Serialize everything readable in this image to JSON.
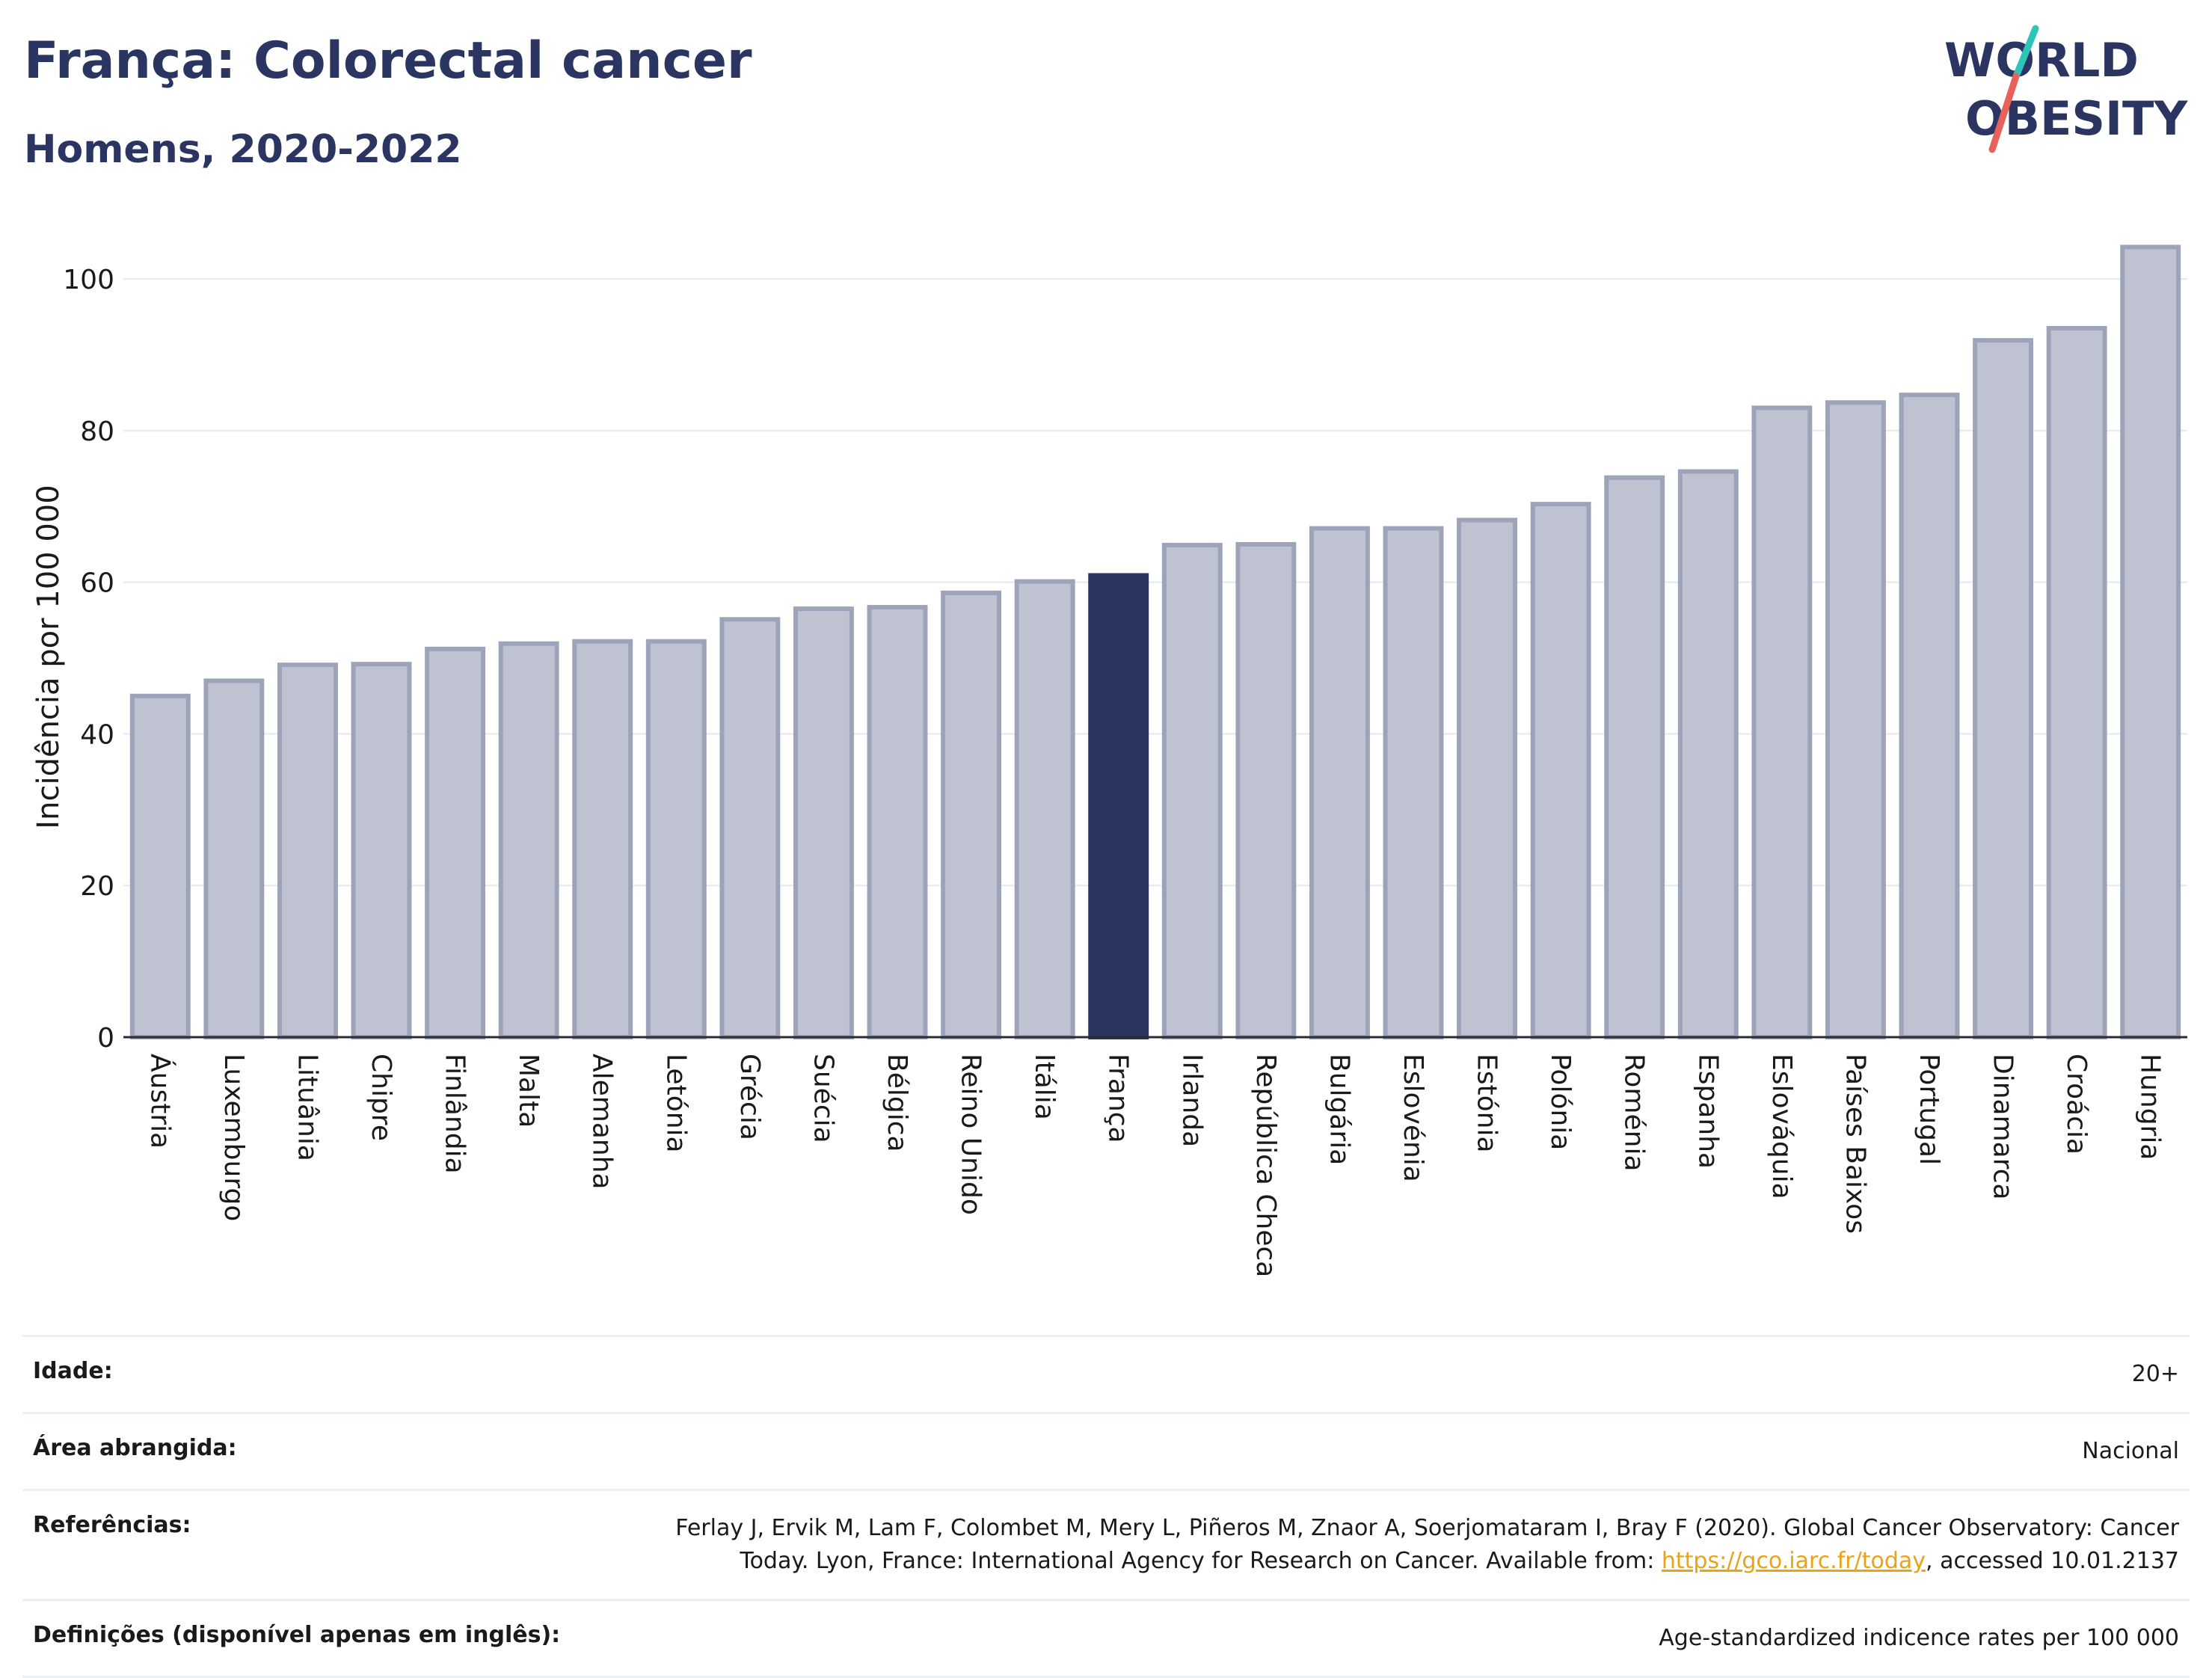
{
  "header": {
    "title": "França: Colorectal cancer",
    "subtitle": "Homens, 2020-2022"
  },
  "logo": {
    "line1": "WORLD",
    "line2": "OBESITY",
    "color_primary": "#2b3561",
    "slash_teal": "#2ec4b6",
    "slash_red": "#e8625a"
  },
  "chart_data": {
    "type": "bar",
    "title": "França: Colorectal cancer",
    "subtitle": "Homens, 2020-2022",
    "ylabel": "Incidência por 100 000",
    "xlabel": "",
    "ylim": [
      0,
      108
    ],
    "yticks": [
      0,
      20,
      40,
      60,
      80,
      100
    ],
    "grid": true,
    "highlight": "França",
    "colors": {
      "default": "#bfc3d1",
      "border": "#9da3b8",
      "highlight": "#2b3561"
    },
    "categories": [
      "Áustria",
      "Luxemburgo",
      "Lituânia",
      "Chipre",
      "Finlândia",
      "Malta",
      "Alemanha",
      "Letónia",
      "Grécia",
      "Suécia",
      "Bélgica",
      "Reino Unido",
      "Itália",
      "França",
      "Irlanda",
      "República Checa",
      "Bulgária",
      "Eslovénia",
      "Estónia",
      "Polónia",
      "Roménia",
      "Espanha",
      "Eslováquia",
      "Países Baixos",
      "Portugal",
      "Dinamarca",
      "Croácia",
      "Hungria"
    ],
    "values": [
      45.0,
      47.0,
      49.1,
      49.2,
      51.2,
      51.9,
      52.2,
      52.2,
      55.1,
      56.5,
      56.7,
      58.6,
      60.1,
      60.9,
      64.9,
      65.0,
      67.1,
      67.1,
      68.2,
      70.3,
      73.8,
      74.6,
      83.0,
      83.7,
      84.7,
      91.9,
      93.5,
      104.2
    ]
  },
  "info": {
    "age_label": "Idade:",
    "age_value": "20+",
    "area_label": "Área abrangida:",
    "area_value": "Nacional",
    "refs_label": "Referências:",
    "refs_line1": "Ferlay J, Ervik M, Lam F, Colombet M, Mery L, Piñeros M, Znaor A, Soerjomataram I, Bray F (2020). Global Cancer Observatory: Cancer",
    "refs_line2_pre": "Today. Lyon, France: International Agency for Research on Cancer. Available from: ",
    "refs_link": "https://gco.iarc.fr/today",
    "refs_line2_post": ", accessed 10.01.2137",
    "defs_label": "Definições (disponível apenas em inglês):",
    "defs_value": "Age-standardized indicence rates per 100 000"
  }
}
